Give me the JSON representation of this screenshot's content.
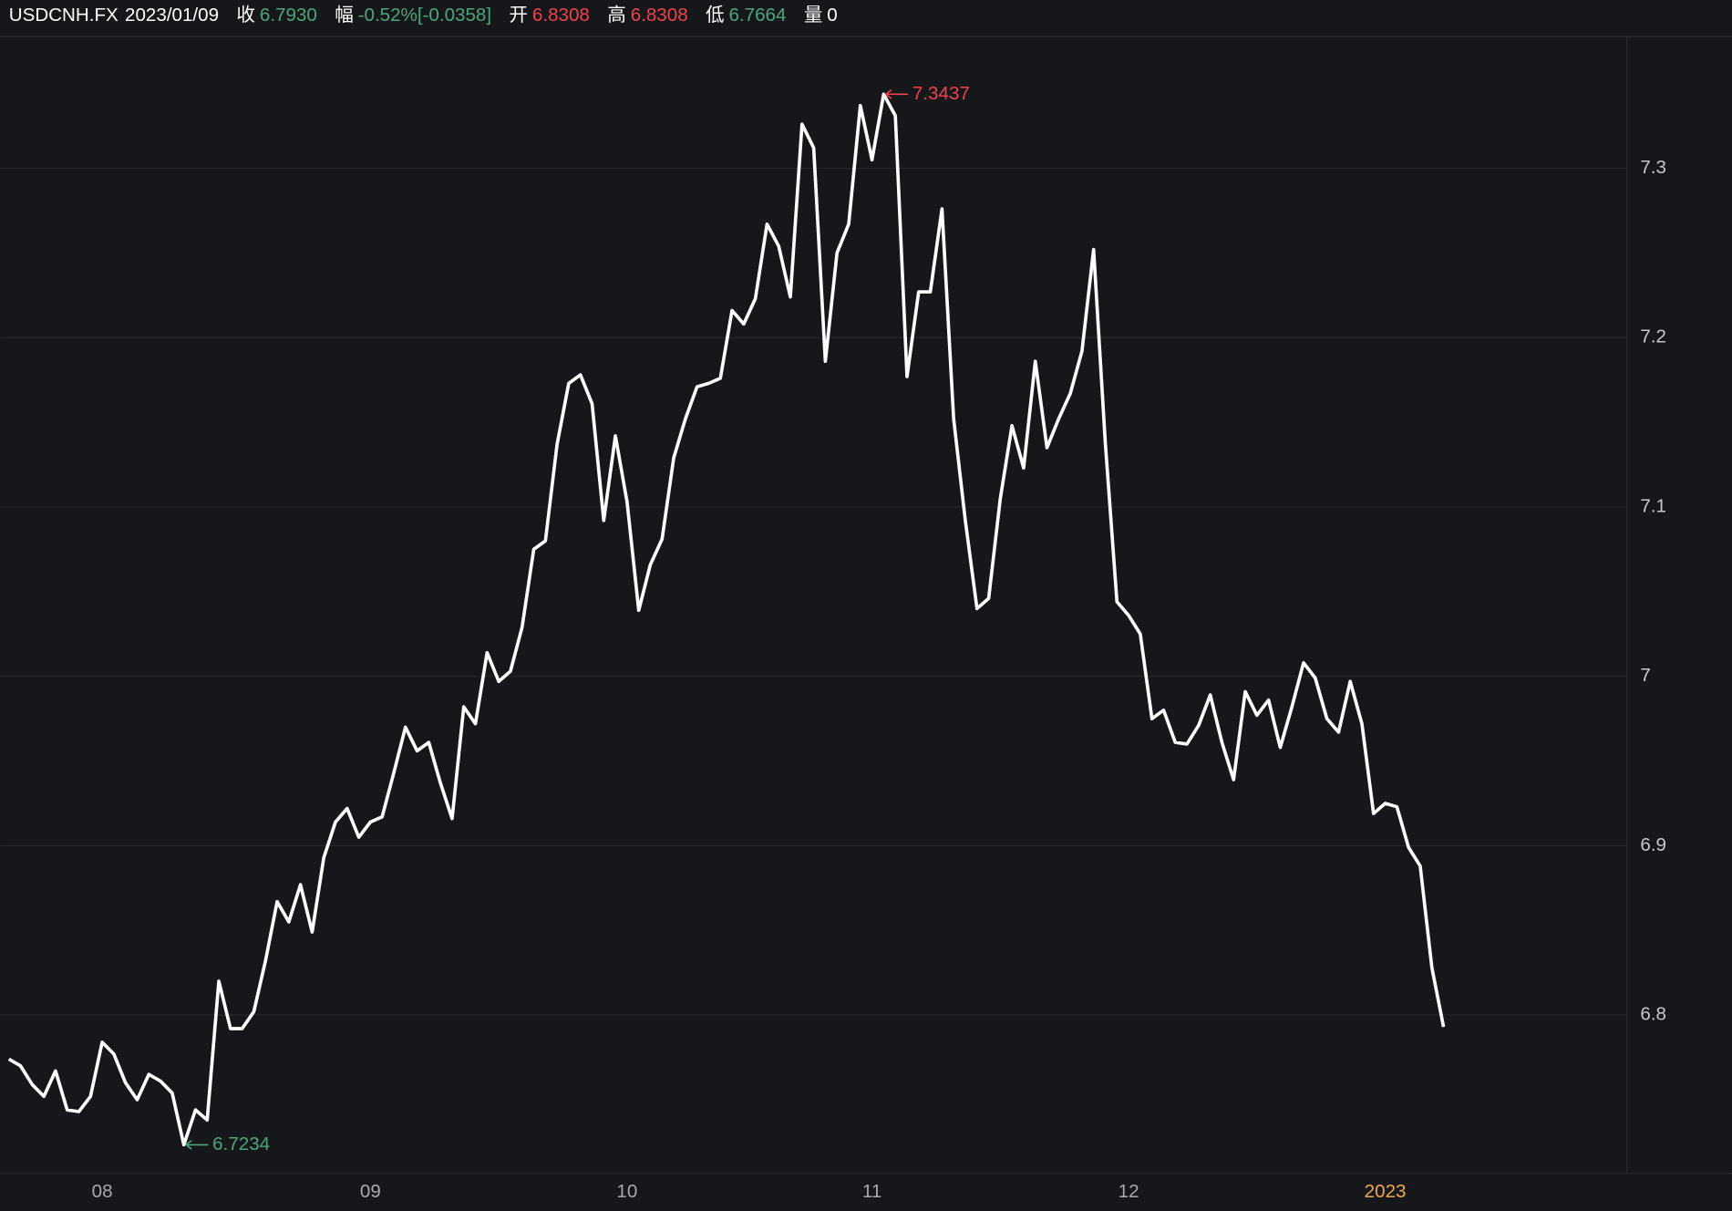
{
  "header": {
    "symbol": "USDCNH.FX",
    "date": "2023/01/09",
    "fields": [
      {
        "label": "收",
        "value": "6.7930",
        "color": "#4ca67a"
      },
      {
        "label": "幅",
        "value": "-0.52%[-0.0358]",
        "color": "#4ca67a"
      },
      {
        "label": "开",
        "value": "6.8308",
        "color": "#f0414c"
      },
      {
        "label": "高",
        "value": "6.8308",
        "color": "#f0414c"
      },
      {
        "label": "低",
        "value": "6.7664",
        "color": "#4ca67a"
      },
      {
        "label": "量",
        "value": "0",
        "color": "#ffffff"
      }
    ]
  },
  "chart_data": {
    "type": "line",
    "color": "#ffffff",
    "max_color": "#f0414c",
    "min_color": "#4ca67a",
    "grid": true,
    "categories": [
      null,
      null,
      null,
      null,
      null,
      null,
      null,
      null,
      "08",
      null,
      null,
      null,
      null,
      null,
      null,
      null,
      null,
      null,
      null,
      null,
      null,
      null,
      null,
      null,
      null,
      null,
      null,
      null,
      null,
      null,
      null,
      "09",
      null,
      null,
      null,
      null,
      null,
      null,
      null,
      null,
      null,
      null,
      null,
      null,
      null,
      null,
      null,
      null,
      null,
      null,
      null,
      null,
      null,
      "10",
      null,
      null,
      null,
      null,
      null,
      null,
      null,
      null,
      null,
      null,
      null,
      null,
      null,
      null,
      null,
      null,
      null,
      null,
      null,
      null,
      "11",
      null,
      null,
      null,
      null,
      null,
      null,
      null,
      null,
      null,
      null,
      null,
      null,
      null,
      null,
      null,
      null,
      null,
      null,
      null,
      null,
      null,
      "12",
      null,
      null,
      null,
      null,
      null,
      null,
      null,
      null,
      null,
      null,
      null,
      null,
      null,
      null,
      null,
      null,
      null,
      null,
      null,
      null,
      null,
      "2023",
      null,
      null,
      null,
      null,
      null
    ],
    "values": [
      6.774,
      6.77,
      6.759,
      6.752,
      6.767,
      6.744,
      6.743,
      6.752,
      6.784,
      6.777,
      6.76,
      6.75,
      6.765,
      6.761,
      6.754,
      6.7234,
      6.744,
      6.738,
      6.82,
      6.792,
      6.792,
      6.802,
      6.832,
      6.867,
      6.855,
      6.877,
      6.849,
      6.893,
      6.914,
      6.922,
      6.905,
      6.914,
      6.917,
      6.943,
      6.97,
      6.956,
      6.961,
      6.937,
      6.916,
      6.982,
      6.972,
      7.014,
      6.997,
      7.003,
      7.029,
      7.075,
      7.08,
      7.137,
      7.173,
      7.178,
      7.161,
      7.092,
      7.142,
      7.103,
      7.039,
      7.066,
      7.081,
      7.129,
      7.152,
      7.171,
      7.173,
      7.176,
      7.216,
      7.208,
      7.223,
      7.267,
      7.254,
      7.224,
      7.326,
      7.312,
      7.186,
      7.25,
      7.267,
      7.337,
      7.305,
      7.3437,
      7.331,
      7.177,
      7.227,
      7.227,
      7.276,
      7.152,
      7.092,
      7.04,
      7.046,
      7.105,
      7.148,
      7.123,
      7.186,
      7.135,
      7.152,
      7.167,
      7.192,
      7.252,
      7.138,
      7.044,
      7.036,
      7.025,
      6.975,
      6.98,
      6.961,
      6.96,
      6.971,
      6.989,
      6.961,
      6.939,
      6.991,
      6.977,
      6.986,
      6.958,
      6.982,
      7.008,
      6.999,
      6.975,
      6.967,
      6.997,
      6.972,
      6.919,
      6.925,
      6.923,
      6.899,
      6.888,
      6.828,
      6.793
    ],
    "ylim": [
      6.7065,
      7.3778
    ],
    "yticks": [
      6.8,
      6.9,
      7,
      7.1,
      7.2,
      7.3
    ]
  }
}
